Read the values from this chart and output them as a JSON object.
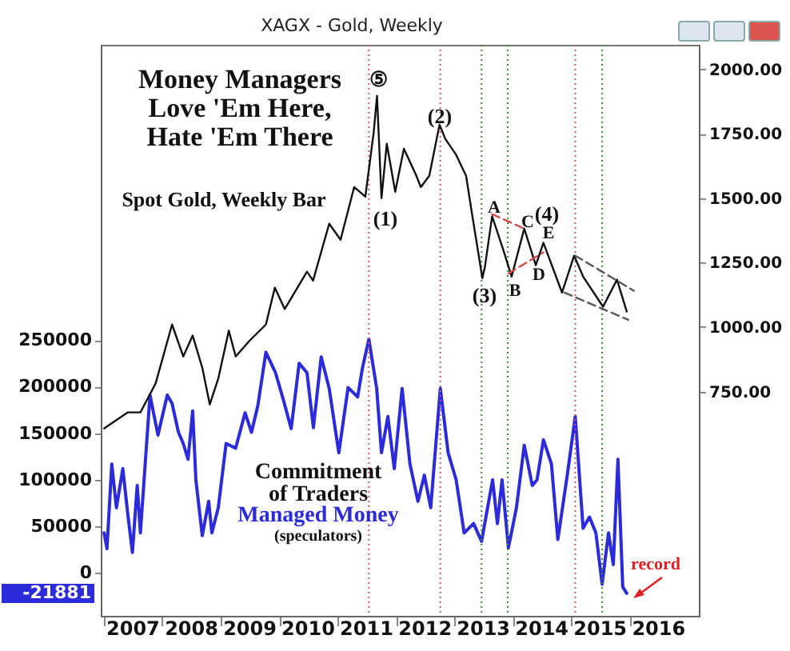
{
  "chart_data": {
    "type": "line",
    "title": "XAGX - Gold, Weekly",
    "xlim": [
      "2006-12-12",
      "2017-03-10"
    ],
    "xticks": [
      {
        "value": "2007-01-01",
        "label": null
      },
      {
        "value": "2007-07-02",
        "label": "2007"
      },
      {
        "value": "2008-01-01",
        "label": null
      },
      {
        "value": "2008-07-02",
        "label": "2008"
      },
      {
        "value": "2009-01-01",
        "label": null
      },
      {
        "value": "2009-07-02",
        "label": "2009"
      },
      {
        "value": "2010-01-01",
        "label": null
      },
      {
        "value": "2010-07-02",
        "label": "2010"
      },
      {
        "value": "2011-01-01",
        "label": null
      },
      {
        "value": "2011-07-02",
        "label": "2011"
      },
      {
        "value": "2012-01-01",
        "label": null
      },
      {
        "value": "2012-07-02",
        "label": "2012"
      },
      {
        "value": "2013-01-01",
        "label": null
      },
      {
        "value": "2013-07-02",
        "label": "2013"
      },
      {
        "value": "2014-01-01",
        "label": null
      },
      {
        "value": "2014-07-02",
        "label": "2014"
      },
      {
        "value": "2015-01-01",
        "label": null
      },
      {
        "value": "2015-07-02",
        "label": "2015"
      },
      {
        "value": "2016-01-01",
        "label": null
      },
      {
        "value": "2016-07-02",
        "label": "2016"
      }
    ],
    "ylim": [
      -46000,
      567000
    ],
    "yticks": [
      {
        "value": 0,
        "label": "0"
      },
      {
        "value": 50000,
        "label": "50000"
      },
      {
        "value": 100000,
        "label": "100000"
      },
      {
        "value": 150000,
        "label": "150000"
      },
      {
        "value": 200000,
        "label": "200000"
      },
      {
        "value": 250000,
        "label": "250000"
      }
    ],
    "y2lim": [
      -120,
      2095
    ],
    "y2ticks": [
      {
        "value": 750,
        "label": "750.00"
      },
      {
        "value": 1000,
        "label": "1000.00"
      },
      {
        "value": 1250,
        "label": "1250.00"
      },
      {
        "value": 1500,
        "label": "1500.00"
      },
      {
        "value": 1750,
        "label": "1750.00"
      },
      {
        "value": 2000,
        "label": "2000.00"
      }
    ],
    "series": [
      {
        "name": "Spot Gold, Weekly Bar",
        "axis": "y2",
        "color": "#111111",
        "x": [
          "2007-01-02",
          "2007-05-29",
          "2007-08-17",
          "2007-11-20",
          "2008-03-02",
          "2008-05-11",
          "2008-07-09",
          "2008-09-07",
          "2008-10-24",
          "2008-12-16",
          "2009-02-20",
          "2009-04-04",
          "2009-07-01",
          "2009-10-10",
          "2009-12-05",
          "2010-02-05",
          "2010-06-24",
          "2010-08-01",
          "2010-11-10",
          "2011-01-20",
          "2011-04-15",
          "2011-06-24",
          "2011-08-15",
          "2011-09-05",
          "2011-09-26",
          "2011-10-03",
          "2011-11-05",
          "2011-12-28",
          "2012-02-20",
          "2012-05-08",
          "2012-06-05",
          "2012-07-28",
          "2012-09-30",
          "2012-11-05",
          "2013-01-12",
          "2013-03-15",
          "2013-04-20",
          "2013-06-25",
          "2013-07-10",
          "2013-08-25",
          "2013-11-05",
          "2013-12-25",
          "2014-03-14",
          "2014-05-25",
          "2014-07-12",
          "2014-11-05",
          "2015-01-20",
          "2015-03-17",
          "2015-07-20",
          "2015-10-15",
          "2015-12-15"
        ],
        "values": [
          607,
          669,
          669,
          781,
          1010,
          886,
          967,
          843,
          700,
          800,
          986,
          886,
          948,
          1010,
          1153,
          1070,
          1215,
          1180,
          1401,
          1339,
          1543,
          1506,
          1754,
          1897,
          1600,
          1500,
          1711,
          1525,
          1692,
          1587,
          1543,
          1587,
          1785,
          1730,
          1668,
          1587,
          1444,
          1190,
          1230,
          1430,
          1295,
          1196,
          1382,
          1240,
          1327,
          1134,
          1277,
          1196,
          1079,
          1184,
          1060
        ]
      },
      {
        "name": "Managed Money",
        "color": "#2b2bdc",
        "x": [
          "2007-01-02",
          "2007-01-20",
          "2007-02-19",
          "2007-03-20",
          "2007-04-29",
          "2007-05-29",
          "2007-06-28",
          "2007-07-28",
          "2007-08-17",
          "2007-10-16",
          "2007-12-05",
          "2008-02-01",
          "2008-03-02",
          "2008-04-11",
          "2008-05-11",
          "2008-06-10",
          "2008-07-09",
          "2008-07-29",
          "2008-09-07",
          "2008-10-17",
          "2008-11-06",
          "2008-12-16",
          "2009-02-03",
          "2009-04-04",
          "2009-06-02",
          "2009-07-12",
          "2009-08-21",
          "2009-10-10",
          "2009-12-09",
          "2010-01-27",
          "2010-03-17",
          "2010-05-06",
          "2010-06-24",
          "2010-08-03",
          "2010-09-21",
          "2010-11-10",
          "2011-01-09",
          "2011-03-08",
          "2011-05-07",
          "2011-06-06",
          "2011-07-16",
          "2011-09-03",
          "2011-10-03",
          "2011-11-12",
          "2011-12-22",
          "2012-02-09",
          "2012-03-29",
          "2012-05-18",
          "2012-06-27",
          "2012-08-06",
          "2012-10-05",
          "2012-11-23",
          "2013-01-12",
          "2013-03-03",
          "2013-05-01",
          "2013-06-20",
          "2013-08-28",
          "2013-09-27",
          "2013-10-26",
          "2013-12-05",
          "2014-01-24",
          "2014-03-14",
          "2014-05-03",
          "2014-06-02",
          "2014-07-12",
          "2014-08-31",
          "2014-10-10",
          "2014-12-08",
          "2015-01-27",
          "2015-03-17",
          "2015-04-26",
          "2015-06-05",
          "2015-07-14",
          "2015-08-23",
          "2015-09-22",
          "2015-10-21",
          "2015-11-20",
          "2015-12-15"
        ],
        "values": [
          43000,
          26000,
          117000,
          70000,
          112000,
          65000,
          22000,
          94000,
          43000,
          191000,
          148000,
          191000,
          182000,
          151000,
          139000,
          122000,
          174000,
          100000,
          40000,
          77000,
          43000,
          70000,
          139000,
          134000,
          172000,
          151000,
          180000,
          237000,
          215000,
          186000,
          155000,
          225000,
          215000,
          156000,
          232000,
          198000,
          129000,
          199000,
          189000,
          220000,
          251000,
          198000,
          129000,
          168000,
          112000,
          198000,
          117000,
          77000,
          105000,
          70000,
          198000,
          129000,
          100000,
          43000,
          53000,
          34000,
          100000,
          53000,
          100000,
          27000,
          70000,
          137000,
          94000,
          100000,
          143000,
          117000,
          36000,
          105000,
          168000,
          48000,
          60000,
          43000,
          -12000,
          43000,
          9000,
          122000,
          -15000,
          -21881
        ]
      },
      {
        "type": "line",
        "axis": "y2",
        "color": "#d04a4a",
        "line_style": "dashed",
        "x": [
          "2013-08-25",
          "2014-03-14"
        ],
        "values": [
          1438,
          1382
        ]
      },
      {
        "type": "line",
        "axis": "y2",
        "color": "#d04a4a",
        "line_style": "dashed",
        "x": [
          "2013-12-05",
          "2014-07-12"
        ],
        "values": [
          1208,
          1290
        ]
      },
      {
        "type": "line",
        "axis": "y2",
        "color": "#555555",
        "line_style": "dashed",
        "x": [
          "2015-01-27",
          "2016-01-28"
        ],
        "values": [
          1277,
          1141
        ]
      },
      {
        "type": "line",
        "axis": "y2",
        "color": "#555555",
        "line_style": "dashed",
        "x": [
          "2014-11-20",
          "2015-12-25"
        ],
        "values": [
          1134,
          1028
        ]
      }
    ],
    "ref_lines": [
      {
        "axis": "x",
        "value": "2011-07-16",
        "color": "#d05a5a",
        "line_style": "dotted"
      },
      {
        "axis": "x",
        "value": "2012-10-05",
        "color": "#d05a5a",
        "line_style": "dotted"
      },
      {
        "axis": "x",
        "value": "2015-01-27",
        "color": "#d05a5a",
        "line_style": "dotted"
      },
      {
        "axis": "x",
        "value": "2013-06-20",
        "color": "#3a8a3a",
        "line_style": "dotted"
      },
      {
        "axis": "x",
        "value": "2013-12-01",
        "color": "#3a8a3a",
        "line_style": "dotted"
      },
      {
        "axis": "x",
        "value": "2015-07-14",
        "color": "#3a8a3a",
        "line_style": "dotted"
      }
    ],
    "annotations": [
      "Money Managers",
      "Love 'Em Here,",
      "Hate 'Em There",
      "Commitment",
      "of Traders",
      "(speculators)",
      "record",
      "-21881",
      "⑤",
      "(1)",
      "(2)",
      "(3)",
      "A",
      "B",
      "C",
      "D",
      "(4)",
      "E"
    ]
  }
}
